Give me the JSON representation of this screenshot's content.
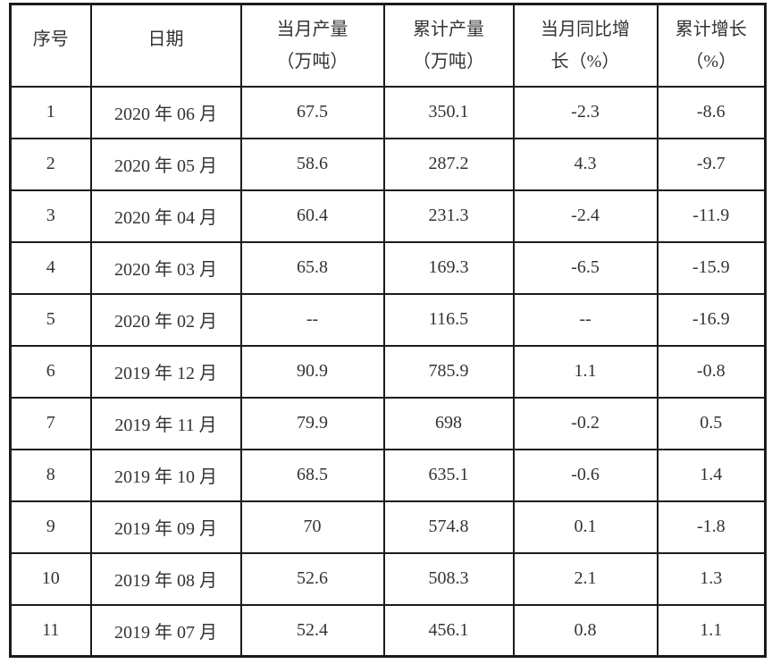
{
  "table": {
    "columns": [
      {
        "line1": "序号",
        "line2": ""
      },
      {
        "line1": "日期",
        "line2": ""
      },
      {
        "line1": "当月产量",
        "line2": "（万吨）"
      },
      {
        "line1": "累计产量",
        "line2": "（万吨）"
      },
      {
        "line1": "当月同比增",
        "line2": "长（%）"
      },
      {
        "line1": "累计增长",
        "line2": "（%）"
      }
    ],
    "rows": [
      [
        "1",
        "2020 年 06 月",
        "67.5",
        "350.1",
        "-2.3",
        "-8.6"
      ],
      [
        "2",
        "2020 年 05 月",
        "58.6",
        "287.2",
        "4.3",
        "-9.7"
      ],
      [
        "3",
        "2020 年 04 月",
        "60.4",
        "231.3",
        "-2.4",
        "-11.9"
      ],
      [
        "4",
        "2020 年 03 月",
        "65.8",
        "169.3",
        "-6.5",
        "-15.9"
      ],
      [
        "5",
        "2020 年 02 月",
        "--",
        "116.5",
        "--",
        "-16.9"
      ],
      [
        "6",
        "2019 年 12 月",
        "90.9",
        "785.9",
        "1.1",
        "-0.8"
      ],
      [
        "7",
        "2019 年 11 月",
        "79.9",
        "698",
        "-0.2",
        "0.5"
      ],
      [
        "8",
        "2019 年 10 月",
        "68.5",
        "635.1",
        "-0.6",
        "1.4"
      ],
      [
        "9",
        "2019 年 09 月",
        "70",
        "574.8",
        "0.1",
        "-1.8"
      ],
      [
        "10",
        "2019 年 08 月",
        "52.6",
        "508.3",
        "2.1",
        "1.3"
      ],
      [
        "11",
        "2019 年 07 月",
        "52.4",
        "456.1",
        "0.8",
        "1.1"
      ]
    ],
    "colors": {
      "border": "#1b1b1b",
      "text": "#333333",
      "background": "#ffffff"
    }
  }
}
